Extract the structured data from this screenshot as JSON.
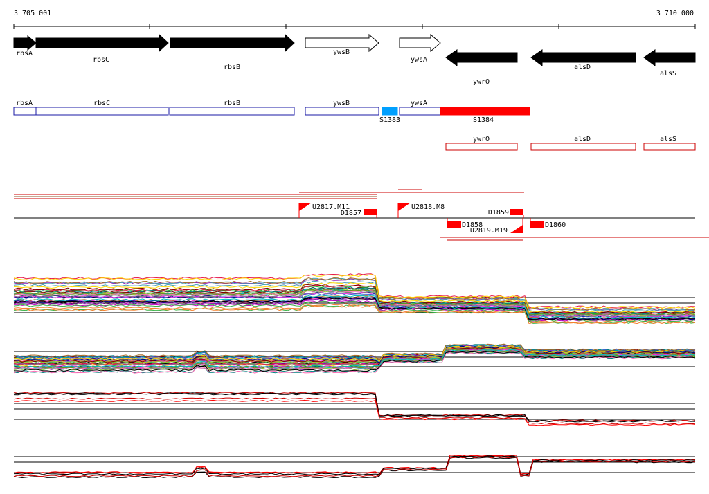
{
  "coordinates": {
    "start": "3 705 001",
    "end": "3 710 000"
  },
  "genes": [
    {
      "name": "rbsA",
      "strand": "+",
      "fill": "black"
    },
    {
      "name": "rbsC",
      "strand": "+",
      "fill": "black"
    },
    {
      "name": "rbsB",
      "strand": "+",
      "fill": "black"
    },
    {
      "name": "ywsB",
      "strand": "+",
      "fill": "white"
    },
    {
      "name": "ywsA",
      "strand": "+",
      "fill": "white"
    },
    {
      "name": "ywrO",
      "strand": "-",
      "fill": "black"
    },
    {
      "name": "alsD",
      "strand": "-",
      "fill": "black"
    },
    {
      "name": "alsS",
      "strand": "-",
      "fill": "black"
    }
  ],
  "segments_plus": [
    {
      "name": "rbsA",
      "color": "#1a1aa6"
    },
    {
      "name": "rbsC",
      "color": "#1a1aa6"
    },
    {
      "name": "rbsB",
      "color": "#1a1aa6"
    },
    {
      "name": "ywsB",
      "color": "#1a1aa6"
    },
    {
      "name": "S1383",
      "color": "#00a0ff"
    },
    {
      "name": "ywsA",
      "color": "#1a1aa6"
    },
    {
      "name": "S1384",
      "color": "#ff0000"
    }
  ],
  "segments_minus": [
    {
      "name": "ywrO",
      "color": "#cc0000"
    },
    {
      "name": "alsD",
      "color": "#cc0000"
    },
    {
      "name": "alsS",
      "color": "#cc0000"
    }
  ],
  "features": {
    "upshifts": [
      "U2817.M11",
      "U2818.M8",
      "U2819.M19"
    ],
    "downshifts": [
      "D1857",
      "D1858",
      "D1859",
      "D1860"
    ]
  },
  "colors": {
    "feature_red": "#ff0000",
    "plus_box": "#1a1aa6",
    "minus_box": "#cc0000",
    "sigma_blue": "#00a0ff"
  }
}
